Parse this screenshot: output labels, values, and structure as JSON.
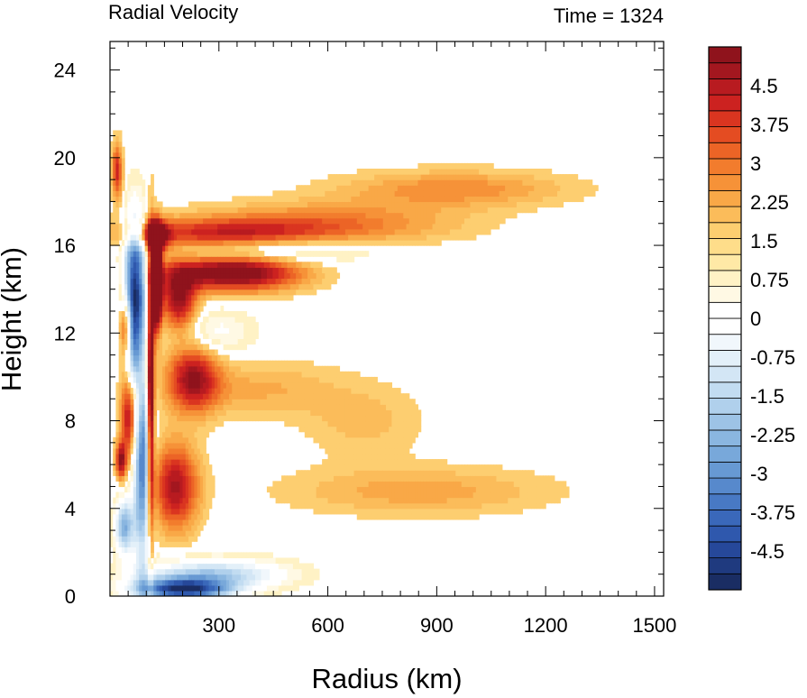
{
  "chart_data": {
    "type": "heatmap",
    "title": "Radial Velocity",
    "subtitle": "Time = 1324",
    "xlabel": "Radius (km)",
    "ylabel": "Height (km)",
    "xlim": [
      0,
      1525
    ],
    "ylim": [
      0,
      25.3
    ],
    "x_ticks": [
      300,
      600,
      900,
      1200,
      1500
    ],
    "y_ticks": [
      0,
      4,
      8,
      12,
      16,
      20,
      24
    ],
    "x_tick_labels": [
      "300",
      "600",
      "900",
      "1200",
      "1500"
    ],
    "y_tick_labels": [
      "0",
      "4",
      "8",
      "12",
      "16",
      "20",
      "24"
    ],
    "colorbar": {
      "min": -5.25,
      "max": 5.25,
      "step": 0.25,
      "labels": [
        "4.5",
        "3.75",
        "3",
        "2.25",
        "1.5",
        "0.75",
        "0",
        "-0.75",
        "-1.5",
        "-2.25",
        "-3",
        "-3.75",
        "-4.5"
      ],
      "label_values": [
        4.5,
        3.75,
        3,
        2.25,
        1.5,
        0.75,
        0,
        -0.75,
        -1.5,
        -2.25,
        -3,
        -3.75,
        -4.5
      ],
      "colors": [
        "#1a2d63",
        "#1f3a7f",
        "#26489a",
        "#2f58ad",
        "#3a68ba",
        "#4879c4",
        "#5789cc",
        "#6799d3",
        "#78a8da",
        "#8ab6e0",
        "#9dc3e6",
        "#b0d0ec",
        "#c2dcf1",
        "#d3e6f5",
        "#e3f0f9",
        "#f1f7fc",
        "#ffffff",
        "#ffffff",
        "#fff9e4",
        "#fff2c5",
        "#ffe9a6",
        "#fedd8a",
        "#fdce70",
        "#fbbc5a",
        "#f9a847",
        "#f69238",
        "#f27c2d",
        "#ec6426",
        "#e44c22",
        "#da3520",
        "#cc2220",
        "#b81b20",
        "#a3171f",
        "#8f131c"
      ]
    },
    "features": [
      {
        "x": 70,
        "y": 14.2,
        "v": -4.8,
        "sx": 22,
        "sy": 2.2
      },
      {
        "x": 90,
        "y": 6.0,
        "v": -4.2,
        "sx": 18,
        "sy": 3.0
      },
      {
        "x": 40,
        "y": 3.2,
        "v": -3.0,
        "sx": 18,
        "sy": 0.9
      },
      {
        "x": 60,
        "y": 10.6,
        "v": -2.5,
        "sx": 14,
        "sy": 2.0
      },
      {
        "x": 128,
        "y": 14.3,
        "v": 6.0,
        "sx": 10,
        "sy": 1.4
      },
      {
        "x": 112,
        "y": 9.0,
        "v": 4.5,
        "sx": 7,
        "sy": 4.5
      },
      {
        "x": 55,
        "y": 8.5,
        "v": 4.0,
        "sx": 16,
        "sy": 1.5
      },
      {
        "x": 45,
        "y": 12.3,
        "v": 3.2,
        "sx": 12,
        "sy": 1.0
      },
      {
        "x": 30,
        "y": 6.2,
        "v": 3.0,
        "sx": 10,
        "sy": 0.6
      },
      {
        "x": 20,
        "y": 19.4,
        "v": 2.4,
        "sx": 10,
        "sy": 0.9
      },
      {
        "x": 125,
        "y": 16.4,
        "v": 3.4,
        "sx": 25,
        "sy": 0.5
      },
      {
        "x": 340,
        "y": 14.8,
        "v": 3.8,
        "sx": 130,
        "sy": 0.6
      },
      {
        "x": 190,
        "y": 13.5,
        "v": 3.0,
        "sx": 35,
        "sy": 1.0
      },
      {
        "x": 230,
        "y": 10.0,
        "v": 2.8,
        "sx": 50,
        "sy": 1.1
      },
      {
        "x": 180,
        "y": 5.0,
        "v": 2.8,
        "sx": 45,
        "sy": 1.4
      },
      {
        "x": 300,
        "y": 16.5,
        "v": 2.2,
        "sx": 200,
        "sy": 0.5
      },
      {
        "x": 600,
        "y": 17.0,
        "v": 1.4,
        "sx": 250,
        "sy": 0.7
      },
      {
        "x": 950,
        "y": 18.6,
        "v": 1.2,
        "sx": 220,
        "sy": 0.6
      },
      {
        "x": 420,
        "y": 15.8,
        "v": -1.6,
        "sx": 200,
        "sy": 0.45
      },
      {
        "x": 280,
        "y": 12.0,
        "v": -1.0,
        "sx": 80,
        "sy": 0.8
      },
      {
        "x": 280,
        "y": 1.0,
        "v": -2.4,
        "sx": 140,
        "sy": 0.5
      },
      {
        "x": 200,
        "y": 0.3,
        "v": -4.6,
        "sx": 90,
        "sy": 0.35
      },
      {
        "x": 850,
        "y": 4.8,
        "v": 0.9,
        "sx": 260,
        "sy": 0.8
      },
      {
        "x": 400,
        "y": 9.5,
        "v": 0.8,
        "sx": 160,
        "sy": 0.9
      },
      {
        "x": 700,
        "y": 8.0,
        "v": 0.6,
        "sx": 120,
        "sy": 1.2
      }
    ]
  }
}
